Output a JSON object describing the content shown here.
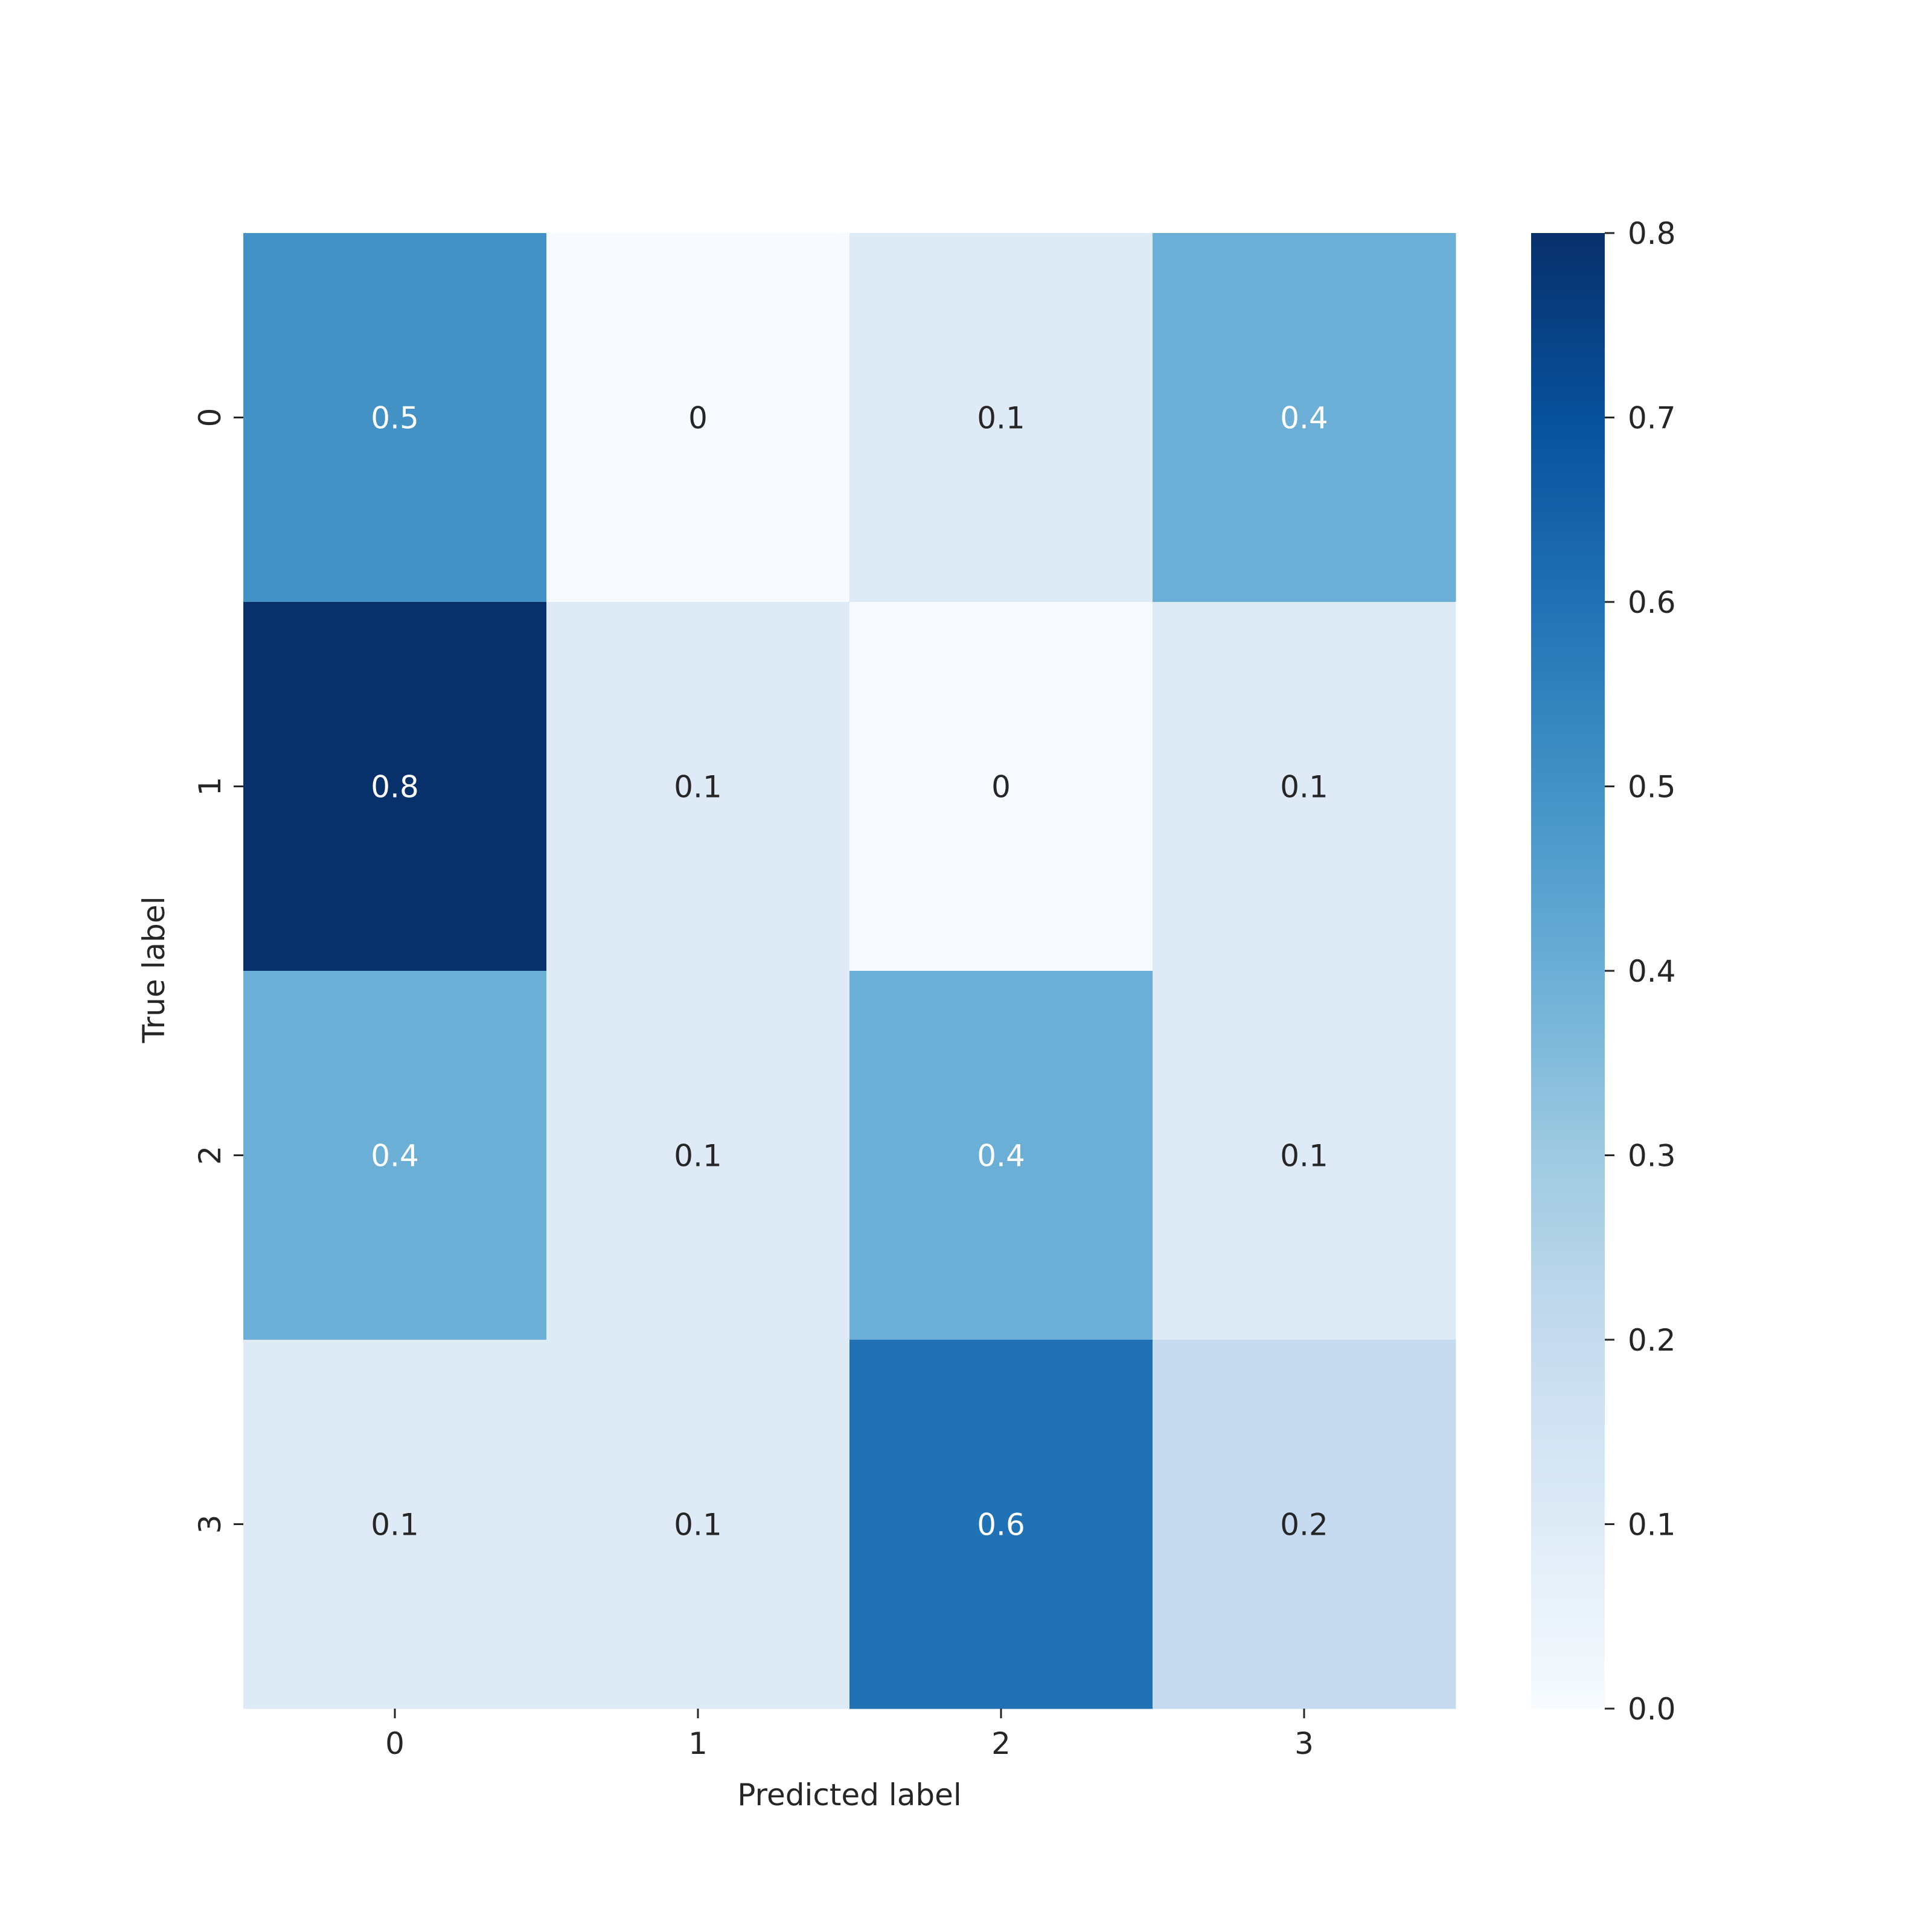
{
  "chart_data": {
    "type": "heatmap",
    "title": "",
    "xlabel": "Predicted label",
    "ylabel": "True label",
    "x_categories": [
      "0",
      "1",
      "2",
      "3"
    ],
    "y_categories": [
      "0",
      "1",
      "2",
      "3"
    ],
    "values": [
      [
        0.5,
        0,
        0.1,
        0.4
      ],
      [
        0.8,
        0.1,
        0,
        0.1
      ],
      [
        0.4,
        0.1,
        0.4,
        0.1
      ],
      [
        0.1,
        0.1,
        0.6,
        0.2
      ]
    ],
    "cell_labels": [
      [
        "0.5",
        "0",
        "0.1",
        "0.4"
      ],
      [
        "0.8",
        "0.1",
        "0",
        "0.1"
      ],
      [
        "0.4",
        "0.1",
        "0.4",
        "0.1"
      ],
      [
        "0.1",
        "0.1",
        "0.6",
        "0.2"
      ]
    ],
    "colormap": "Blues",
    "colorbar": {
      "range": [
        0.0,
        0.8
      ],
      "ticks": [
        "0.0",
        "0.1",
        "0.2",
        "0.3",
        "0.4",
        "0.5",
        "0.6",
        "0.7",
        "0.8"
      ],
      "placement": "right"
    },
    "colors": {
      "low": "#f7fbff",
      "high": "#08306b",
      "text_dark": "#262626",
      "text_light": "#ffffff"
    },
    "grid": false
  }
}
